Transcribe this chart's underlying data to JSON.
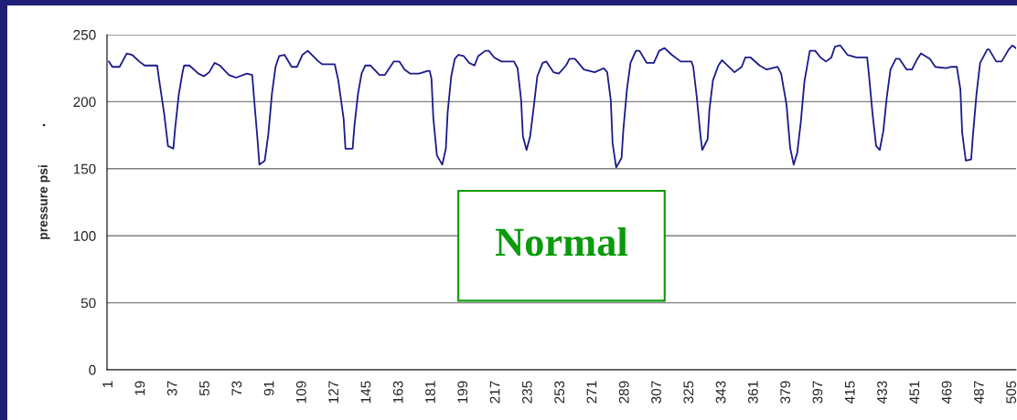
{
  "chart_data": {
    "type": "line",
    "ylabel": "pressure psi",
    "annotations": [
      "Normal",
      "."
    ],
    "x": [
      1,
      3,
      7,
      11,
      14,
      18,
      21,
      28,
      29,
      32,
      34,
      37,
      38,
      40,
      42,
      43,
      46,
      51,
      54,
      57,
      60,
      63,
      68,
      72,
      78,
      81,
      82,
      84,
      85,
      88,
      90,
      92,
      94,
      96,
      99,
      103,
      106,
      109,
      112,
      118,
      120,
      127,
      129,
      132,
      133,
      137,
      138,
      140,
      142,
      144,
      147,
      152,
      155,
      160,
      163,
      166,
      169,
      174,
      179,
      180,
      181,
      182,
      184,
      187,
      189,
      190,
      192,
      194,
      196,
      199,
      202,
      205,
      207,
      211,
      213,
      216,
      220,
      227,
      229,
      231,
      232,
      234,
      236,
      238,
      240,
      243,
      245,
      249,
      252,
      256,
      258,
      261,
      266,
      272,
      277,
      279,
      281,
      282,
      284,
      287,
      288,
      290,
      292,
      295,
      297,
      301,
      305,
      308,
      311,
      315,
      320,
      326,
      327,
      329,
      331,
      332,
      335,
      336,
      338,
      341,
      343,
      350,
      354,
      356,
      359,
      364,
      368,
      374,
      376,
      379,
      381,
      383,
      385,
      387,
      389,
      392,
      395,
      398,
      401,
      404,
      406,
      409,
      413,
      418,
      424,
      425,
      427,
      429,
      431,
      433,
      435,
      437,
      440,
      442,
      446,
      449,
      452,
      454,
      459,
      462,
      468,
      471,
      474,
      476,
      477,
      479,
      482,
      483,
      485,
      487,
      491,
      492,
      496,
      499,
      503,
      505,
      507
    ],
    "series": [
      {
        "color": "#1a1a8c",
        "values": [
          230,
          226,
          226,
          236,
          235,
          230,
          227,
          227,
          217,
          190,
          167,
          165,
          180,
          205,
          221,
          227,
          227,
          221,
          219,
          222,
          229,
          227,
          220,
          218,
          221,
          220,
          203,
          171,
          153,
          156,
          176,
          206,
          226,
          234,
          235,
          226,
          226,
          235,
          238,
          230,
          228,
          228,
          216,
          187,
          165,
          165,
          182,
          206,
          221,
          227,
          227,
          220,
          220,
          230,
          230,
          224,
          221,
          221,
          223,
          223,
          217,
          188,
          160,
          153,
          165,
          192,
          219,
          232,
          235,
          234,
          229,
          227,
          234,
          238,
          238,
          233,
          230,
          230,
          225,
          201,
          174,
          164,
          174,
          196,
          219,
          229,
          230,
          222,
          221,
          227,
          232,
          232,
          224,
          222,
          225,
          222,
          201,
          169,
          151,
          158,
          179,
          209,
          229,
          238,
          238,
          229,
          229,
          238,
          240,
          235,
          230,
          230,
          226,
          203,
          175,
          164,
          172,
          194,
          216,
          227,
          231,
          222,
          226,
          233,
          233,
          227,
          224,
          226,
          221,
          198,
          166,
          153,
          162,
          185,
          215,
          238,
          238,
          233,
          230,
          233,
          241,
          242,
          235,
          233,
          233,
          220,
          191,
          167,
          164,
          178,
          204,
          224,
          232,
          232,
          224,
          224,
          232,
          236,
          232,
          226,
          225,
          226,
          226,
          209,
          177,
          156,
          157,
          175,
          206,
          229,
          239,
          239,
          230,
          230,
          239,
          242,
          240
        ]
      }
    ],
    "xlim": [
      0,
      507
    ],
    "xticks": [
      1,
      19,
      37,
      55,
      73,
      91,
      109,
      127,
      145,
      163,
      181,
      199,
      217,
      235,
      253,
      271,
      289,
      307,
      325,
      343,
      361,
      379,
      397,
      415,
      433,
      451,
      469,
      487,
      505
    ],
    "ylim": [
      0,
      250
    ],
    "yticks": [
      0,
      50,
      100,
      150,
      200,
      250
    ],
    "grid": "y",
    "legend": false,
    "marker": "none",
    "line_style": "solid"
  }
}
